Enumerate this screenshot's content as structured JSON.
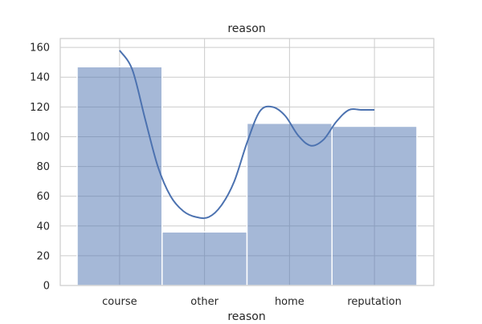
{
  "chart_data": {
    "type": "bar",
    "title": "reason",
    "xlabel": "reason",
    "ylabel": "",
    "categories": [
      "course",
      "other",
      "home",
      "reputation"
    ],
    "values": [
      147,
      36,
      109,
      107
    ],
    "ylim": [
      0,
      166
    ],
    "yticks": [
      0,
      20,
      40,
      60,
      80,
      100,
      120,
      140,
      160
    ],
    "grid": true,
    "bar_color": "#4c72b0",
    "kde_line": {
      "color": "#4c72b0",
      "x": [
        0,
        0.15,
        0.3,
        0.45,
        0.6,
        0.75,
        0.9,
        1.05,
        1.2,
        1.35,
        1.5,
        1.65,
        1.8,
        1.95,
        2.1,
        2.25,
        2.4,
        2.55,
        2.7,
        2.85,
        3.0
      ],
      "y": [
        158,
        145,
        112,
        80,
        60,
        50,
        46,
        46,
        54,
        70,
        96,
        117,
        120,
        114,
        101,
        94,
        98,
        110,
        118,
        118,
        118
      ]
    }
  }
}
